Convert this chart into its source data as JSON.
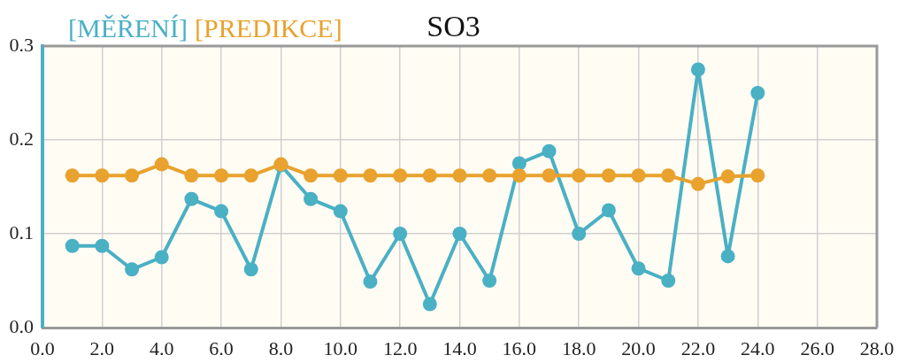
{
  "chart_data": {
    "type": "line",
    "title": "SO3",
    "x": [
      1,
      2,
      3,
      4,
      5,
      6,
      7,
      8,
      9,
      10,
      11,
      12,
      13,
      14,
      15,
      16,
      17,
      18,
      19,
      20,
      21,
      22,
      23,
      24
    ],
    "series": [
      {
        "name": "[MĚŘENÍ]",
        "color": "#4ab0c4",
        "values": [
          0.087,
          0.087,
          0.062,
          0.075,
          0.137,
          0.124,
          0.062,
          0.173,
          0.137,
          0.124,
          0.049,
          0.1,
          0.025,
          0.1,
          0.05,
          0.175,
          0.188,
          0.1,
          0.125,
          0.063,
          0.05,
          0.275,
          0.076,
          0.25
        ]
      },
      {
        "name": "[PREDIKCE]",
        "color": "#e8a22d",
        "values": [
          0.162,
          0.162,
          0.162,
          0.174,
          0.162,
          0.162,
          0.162,
          0.174,
          0.162,
          0.162,
          0.162,
          0.162,
          0.162,
          0.162,
          0.162,
          0.162,
          0.162,
          0.162,
          0.162,
          0.162,
          0.162,
          0.153,
          0.161,
          0.162
        ]
      }
    ],
    "xlim": [
      0,
      28
    ],
    "xticks": [
      {
        "value": 0,
        "label": "0.0"
      },
      {
        "value": 2,
        "label": "2.0"
      },
      {
        "value": 4,
        "label": "4.0"
      },
      {
        "value": 6,
        "label": "6.0"
      },
      {
        "value": 8,
        "label": "8.0"
      },
      {
        "value": 10,
        "label": "10.0"
      },
      {
        "value": 12,
        "label": "12.0"
      },
      {
        "value": 14,
        "label": "14.0"
      },
      {
        "value": 16,
        "label": "16.0"
      },
      {
        "value": 18,
        "label": "18.0"
      },
      {
        "value": 20,
        "label": "20.0"
      },
      {
        "value": 22,
        "label": "22.0"
      },
      {
        "value": 24,
        "label": "24.0"
      },
      {
        "value": 26,
        "label": "26.0"
      },
      {
        "value": 28,
        "label": "28.0"
      }
    ],
    "ylim": [
      0,
      0.3
    ],
    "yticks": [
      {
        "value": 0,
        "label": "0.0"
      },
      0.1,
      0.2,
      0.3
    ],
    "grid": true,
    "legend": "top left",
    "marker": "circle",
    "line_style": "solid"
  }
}
